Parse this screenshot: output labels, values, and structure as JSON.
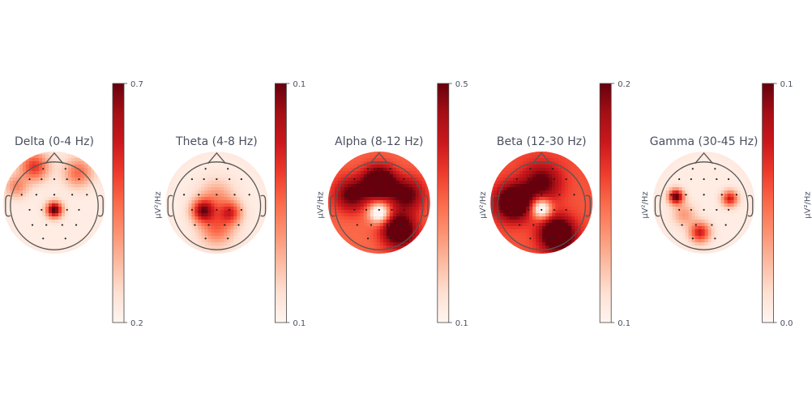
{
  "chart_data": {
    "type": "heatmap",
    "colormap": "Reds",
    "colormap_stops": [
      "#fff5f0",
      "#fee0d2",
      "#fcbba1",
      "#fc9272",
      "#fb6a4a",
      "#ef3b2c",
      "#cb181d",
      "#a50f15",
      "#67000d"
    ],
    "head_outline_color": "#555555",
    "sensor_dot_color": "#222222",
    "unit": "µV²/Hz",
    "panels": [
      {
        "title": "Delta (0-4 Hz)",
        "vmin": 0.2,
        "vmax": 0.7,
        "tick_top": "0.7",
        "tick_bottom": "0.2",
        "hotspots": [
          {
            "x": 0.0,
            "y": -0.18,
            "v": 1.0,
            "s": 0.14
          },
          {
            "x": -0.5,
            "y": 0.9,
            "v": 0.6,
            "s": 0.25
          },
          {
            "x": 0.6,
            "y": 0.75,
            "v": 0.45,
            "s": 0.25
          },
          {
            "x": -0.95,
            "y": 0.4,
            "v": 0.35,
            "s": 0.2
          }
        ],
        "base": 0.05
      },
      {
        "title": "Theta (4-8 Hz)",
        "vmin": 0.1,
        "vmax": 0.1,
        "tick_top": "0.1",
        "tick_bottom": "0.1",
        "hotspots": [
          {
            "x": -0.35,
            "y": -0.2,
            "v": 0.8,
            "s": 0.2
          },
          {
            "x": 0.35,
            "y": -0.25,
            "v": 0.55,
            "s": 0.2
          },
          {
            "x": 0.0,
            "y": -0.65,
            "v": 0.45,
            "s": 0.3
          },
          {
            "x": 0.0,
            "y": 0.15,
            "v": 0.3,
            "s": 0.3
          }
        ],
        "base": 0.05
      },
      {
        "title": "Alpha (8-12 Hz)",
        "vmin": 0.1,
        "vmax": 0.5,
        "tick_top": "0.5",
        "tick_bottom": "0.1",
        "hotspots": [
          {
            "x": 0.0,
            "y": 0.5,
            "v": 0.95,
            "s": 0.28
          },
          {
            "x": 0.5,
            "y": -0.7,
            "v": 0.8,
            "s": 0.3
          },
          {
            "x": -0.7,
            "y": 0.2,
            "v": 0.55,
            "s": 0.3
          },
          {
            "x": 0.7,
            "y": 0.2,
            "v": 0.55,
            "s": 0.3
          }
        ],
        "cold": [
          {
            "x": 0.0,
            "y": -0.25,
            "v": 0.75,
            "s": 0.18
          }
        ],
        "base": 0.5
      },
      {
        "title": "Beta (12-30 Hz)",
        "vmin": 0.1,
        "vmax": 0.2,
        "tick_top": "0.2",
        "tick_bottom": "0.1",
        "hotspots": [
          {
            "x": -0.7,
            "y": 0.0,
            "v": 0.9,
            "s": 0.3
          },
          {
            "x": 0.4,
            "y": -0.8,
            "v": 0.9,
            "s": 0.3
          },
          {
            "x": 0.0,
            "y": 0.5,
            "v": 0.5,
            "s": 0.35
          }
        ],
        "cold": [
          {
            "x": 0.0,
            "y": -0.15,
            "v": 0.8,
            "s": 0.17
          }
        ],
        "base": 0.55
      },
      {
        "title": "Gamma (30-45 Hz)",
        "vmin": 0.0,
        "vmax": 0.1,
        "tick_top": "0.1",
        "tick_bottom": "0.0",
        "hotspots": [
          {
            "x": -0.7,
            "y": 0.15,
            "v": 1.0,
            "s": 0.13
          },
          {
            "x": 0.65,
            "y": 0.1,
            "v": 0.7,
            "s": 0.14
          },
          {
            "x": -0.1,
            "y": -0.75,
            "v": 0.7,
            "s": 0.18
          },
          {
            "x": -0.5,
            "y": -0.3,
            "v": 0.3,
            "s": 0.2
          }
        ],
        "base": 0.05
      }
    ]
  }
}
